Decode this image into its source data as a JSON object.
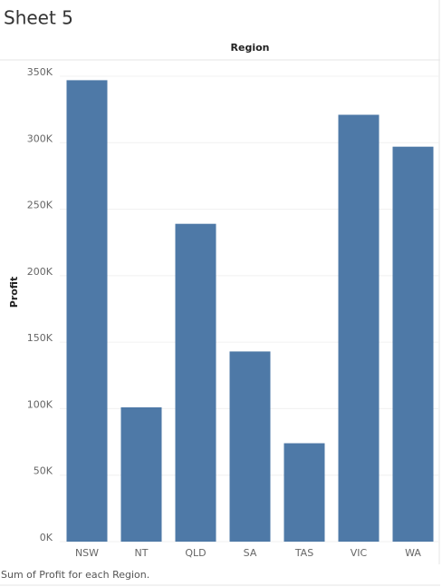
{
  "chart_data": {
    "type": "bar",
    "title": "Sheet 5",
    "x_label": "Region",
    "y_label": "Profit",
    "caption": "Sum of Profit for each Region.",
    "categories": [
      "NSW",
      "NT",
      "QLD",
      "SA",
      "TAS",
      "VIC",
      "WA"
    ],
    "values": [
      347000,
      101000,
      239000,
      143000,
      74000,
      321000,
      297000
    ],
    "color": "#4e79a7",
    "ylim": [
      0,
      350000
    ],
    "yticks": [
      {
        "value": 0,
        "label": "0K"
      },
      {
        "value": 50000,
        "label": "50K"
      },
      {
        "value": 100000,
        "label": "100K"
      },
      {
        "value": 150000,
        "label": "150K"
      },
      {
        "value": 200000,
        "label": "200K"
      },
      {
        "value": 250000,
        "label": "250K"
      },
      {
        "value": 300000,
        "label": "300K"
      },
      {
        "value": 350000,
        "label": "350K"
      }
    ],
    "grid": true
  }
}
